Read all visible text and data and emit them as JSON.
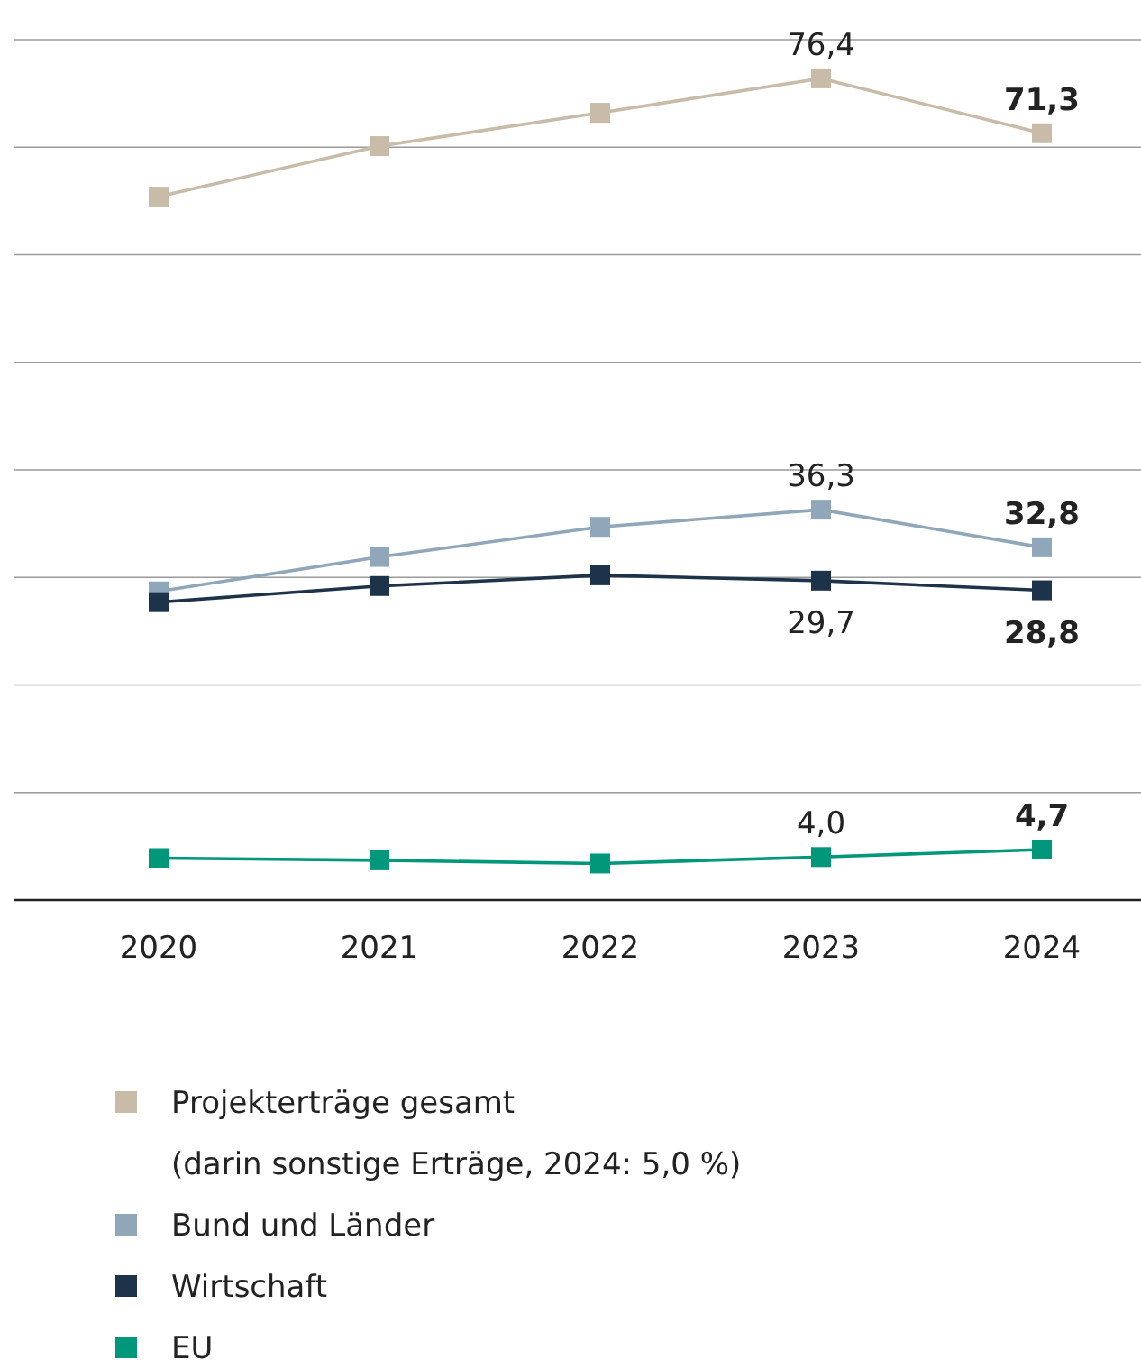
{
  "chart_data": {
    "type": "line",
    "categories": [
      "2020",
      "2021",
      "2022",
      "2023",
      "2024"
    ],
    "ylim": [
      0,
      80
    ],
    "yticks": [
      {
        "value": 0,
        "label": null
      },
      {
        "value": 10,
        "label": null
      },
      {
        "value": 20,
        "label": null
      },
      {
        "value": 30,
        "label": null
      },
      {
        "value": 40,
        "label": null
      },
      {
        "value": 50,
        "label": null
      },
      {
        "value": 60,
        "label": null
      },
      {
        "value": 70,
        "label": null
      },
      {
        "value": 80,
        "label": null
      }
    ],
    "tick_labels": "x",
    "grid": "y",
    "marker": "square",
    "line_style": "solid",
    "legend": "bottom",
    "series": [
      {
        "name": "Projekterträge gesamt",
        "color": "#c8bba8",
        "values": [
          65.4,
          70.1,
          73.2,
          76.4,
          71.3
        ],
        "value_labels": [
          null,
          null,
          null,
          "76,4",
          "71,3"
        ]
      },
      {
        "name": "Bund und Länder",
        "color": "#8fa7b8",
        "values": [
          28.7,
          31.9,
          34.7,
          36.3,
          32.8
        ],
        "value_labels": [
          null,
          null,
          null,
          "36,3",
          "32,8"
        ]
      },
      {
        "name": "Wirtschaft",
        "color": "#1d3349",
        "values": [
          27.7,
          29.2,
          30.2,
          29.7,
          28.8
        ],
        "value_labels": [
          null,
          null,
          null,
          "29,7",
          "28,8"
        ]
      },
      {
        "name": "EU",
        "color": "#00977a",
        "values": [
          3.9,
          3.7,
          3.4,
          4.0,
          4.7
        ],
        "value_labels": [
          null,
          null,
          null,
          "4,0",
          "4,7"
        ]
      }
    ],
    "annotations": [
      "(darin sonstige Erträge, 2024: 5,0 %)"
    ]
  }
}
